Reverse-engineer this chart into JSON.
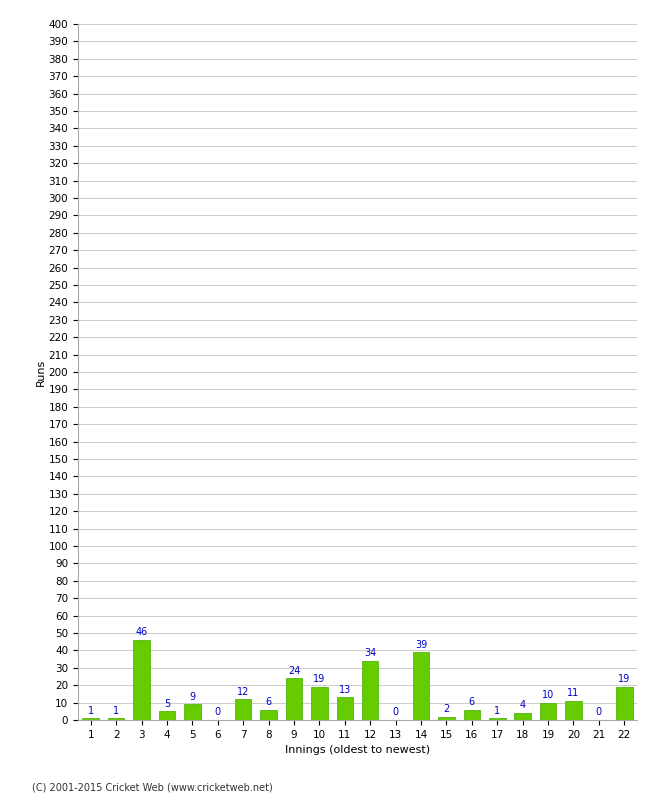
{
  "title": "",
  "xlabel": "Innings (oldest to newest)",
  "ylabel": "Runs",
  "categories": [
    1,
    2,
    3,
    4,
    5,
    6,
    7,
    8,
    9,
    10,
    11,
    12,
    13,
    14,
    15,
    16,
    17,
    18,
    19,
    20,
    21,
    22
  ],
  "values": [
    1,
    1,
    46,
    5,
    9,
    0,
    12,
    6,
    24,
    19,
    13,
    34,
    0,
    39,
    2,
    6,
    1,
    4,
    10,
    11,
    0,
    19
  ],
  "bar_color": "#66cc00",
  "bar_edge_color": "#44aa00",
  "label_color": "#0000cc",
  "background_color": "#ffffff",
  "grid_color": "#cccccc",
  "ylim": [
    0,
    400
  ],
  "ytick_step": 10,
  "axis_label_fontsize": 8,
  "tick_fontsize": 7.5,
  "value_label_fontsize": 7,
  "footer": "(C) 2001-2015 Cricket Web (www.cricketweb.net)"
}
